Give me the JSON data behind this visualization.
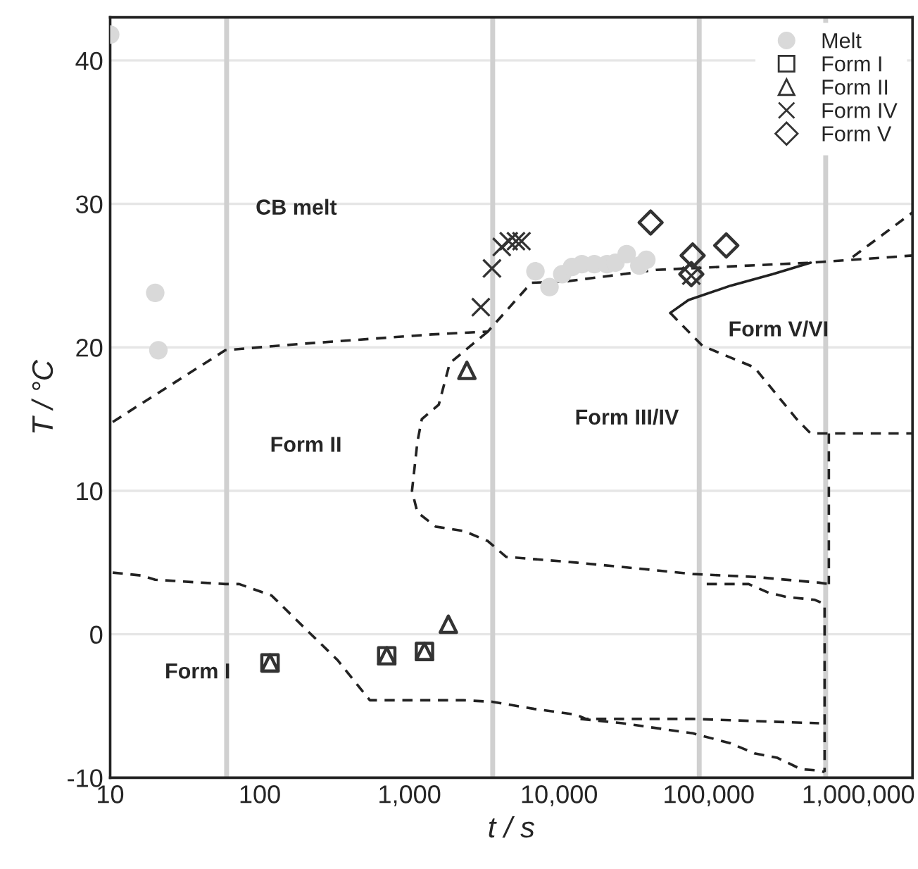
{
  "chart_data": {
    "type": "scatter",
    "xlabel": "t / s",
    "ylabel": "T / °C",
    "log": "x",
    "xlim": [
      10,
      2300000
    ],
    "ylim": [
      -10,
      43
    ],
    "xticks": [
      10,
      100,
      {
        "value": 1000,
        "label": "1,000"
      },
      {
        "value": 10000,
        "label": "10,000"
      },
      {
        "value": 100000,
        "label": "100,000"
      },
      {
        "value": 1000000,
        "label": "1,000,000"
      }
    ],
    "yticks": [
      -10,
      0,
      10,
      20,
      30,
      40
    ],
    "grid": "y",
    "legend": "top right",
    "ref_lines": [
      {
        "axis": "x",
        "value": 60,
        "color": "#d0d0d0"
      },
      {
        "axis": "x",
        "value": 3600,
        "color": "#d0d0d0"
      },
      {
        "axis": "x",
        "value": 86400,
        "color": "#d0d0d0"
      },
      {
        "axis": "x",
        "value": 604800,
        "color": "#d0d0d0"
      }
    ],
    "series": [
      {
        "type": "line",
        "color": "#222222",
        "line_style": "dashed",
        "marker": "none",
        "x": [
          10.4,
          58.8,
          166,
          1410,
          3340,
          6520,
          11200,
          44600,
          480000,
          2300000
        ],
        "values": [
          14.8,
          19.8,
          20.2,
          20.9,
          21.1,
          24.5,
          24.6,
          25.4,
          25.9,
          26.4
        ]
      },
      {
        "type": "line",
        "color": "#222222",
        "line_style": "dashed",
        "marker": "none",
        "x": [
          917000,
          2300000
        ],
        "values": [
          26.3,
          29.4
        ]
      },
      {
        "type": "line",
        "color": "#222222",
        "line_style": "dashed",
        "marker": "none",
        "x": [
          3340,
          1860,
          1570,
          1210,
          1130,
          1040,
          1130,
          1500,
          2310,
          3340,
          4420,
          13000,
          40900,
          78200,
          202000,
          546000,
          635000
        ],
        "values": [
          21.1,
          18.9,
          16.0,
          15.0,
          13.4,
          10.0,
          8.5,
          7.5,
          7.2,
          6.5,
          5.4,
          5.0,
          4.5,
          4.2,
          4.0,
          3.6,
          3.5
        ]
      },
      {
        "type": "line",
        "color": "#222222",
        "line_style": "dashed",
        "marker": "none",
        "x": [
          635000,
          635000
        ],
        "values": [
          14.0,
          3.5
        ]
      },
      {
        "type": "line",
        "color": "#222222",
        "line_style": "dashed",
        "marker": "none",
        "x": [
          97000,
          185000,
          251000,
          332000,
          512000,
          595000,
          595000
        ],
        "values": [
          3.5,
          3.5,
          2.9,
          2.6,
          2.4,
          2.1,
          -9.6
        ]
      },
      {
        "type": "line",
        "color": "#222222",
        "line_style": "dashed",
        "marker": "none",
        "x": [
          55300,
          91000,
          202000,
          387000,
          480000,
          2300000
        ],
        "values": [
          22.4,
          20.1,
          18.6,
          15.0,
          14.0,
          14.0
        ]
      },
      {
        "type": "line",
        "color": "#222222",
        "line_style": "solid",
        "marker": "none",
        "x": [
          55300,
          73300,
          140000,
          268000,
          480000
        ],
        "values": [
          22.4,
          23.3,
          24.3,
          25.1,
          25.9
        ]
      },
      {
        "type": "line",
        "color": "#222222",
        "line_style": "dashed",
        "marker": "none",
        "x": [
          10.4,
          16.1,
          20.0,
          58.8,
          72.9,
          120,
          201,
          331,
          544,
          2310,
          3560,
          6810,
          13000,
          15100,
          78200,
          546000
        ],
        "values": [
          4.3,
          4.1,
          3.8,
          3.5,
          3.5,
          2.7,
          0.4,
          -1.8,
          -4.6,
          -4.6,
          -4.7,
          -5.2,
          -5.6,
          -5.9,
          -5.9,
          -6.2
        ]
      },
      {
        "type": "line",
        "color": "#222222",
        "line_style": "dashed",
        "marker": "none",
        "x": [
          13900,
          26500,
          78200,
          140000,
          202000,
          286000,
          413000,
          546000,
          595000
        ],
        "values": [
          -5.9,
          -6.2,
          -6.9,
          -7.6,
          -8.3,
          -8.6,
          -9.4,
          -9.5,
          -9.6
        ]
      },
      {
        "name": "Melt",
        "color": "#d9d9d9",
        "marker": "circle",
        "x": [
          10,
          20,
          21,
          6950,
          8630,
          10500,
          12200,
          14200,
          17200,
          20900,
          23800,
          28300,
          34400,
          38300
        ],
        "values": [
          41.8,
          23.8,
          19.8,
          25.3,
          24.2,
          25.1,
          25.6,
          25.8,
          25.8,
          25.8,
          25.9,
          26.5,
          25.7,
          26.1
        ]
      },
      {
        "name": "Form I",
        "color": "#333333",
        "marker": "square",
        "x": [
          117,
          705,
          1260
        ],
        "values": [
          -2.0,
          -1.5,
          -1.2
        ]
      },
      {
        "name": "Form II",
        "color": "#333333",
        "marker": "triangle",
        "x": [
          117,
          705,
          1260,
          1820,
          2420
        ],
        "values": [
          -2.0,
          -1.5,
          -1.2,
          0.7,
          18.4
        ]
      },
      {
        "name": "Form IV",
        "color": "#333333",
        "marker": "cross",
        "x": [
          3000,
          3560,
          4140,
          4610,
          5150,
          5610,
          76500
        ],
        "values": [
          22.8,
          25.5,
          27.0,
          27.4,
          27.4,
          27.4,
          25.0
        ]
      },
      {
        "name": "Form V",
        "color": "#333333",
        "marker": "diamond",
        "x": [
          40900,
          78100,
          76500,
          131000
        ],
        "values": [
          28.7,
          26.4,
          25.1,
          27.1
        ]
      }
    ],
    "annotations": [
      "CB melt",
      "Form II",
      "Form III/IV",
      "Form V/VI",
      "Form I"
    ]
  }
}
